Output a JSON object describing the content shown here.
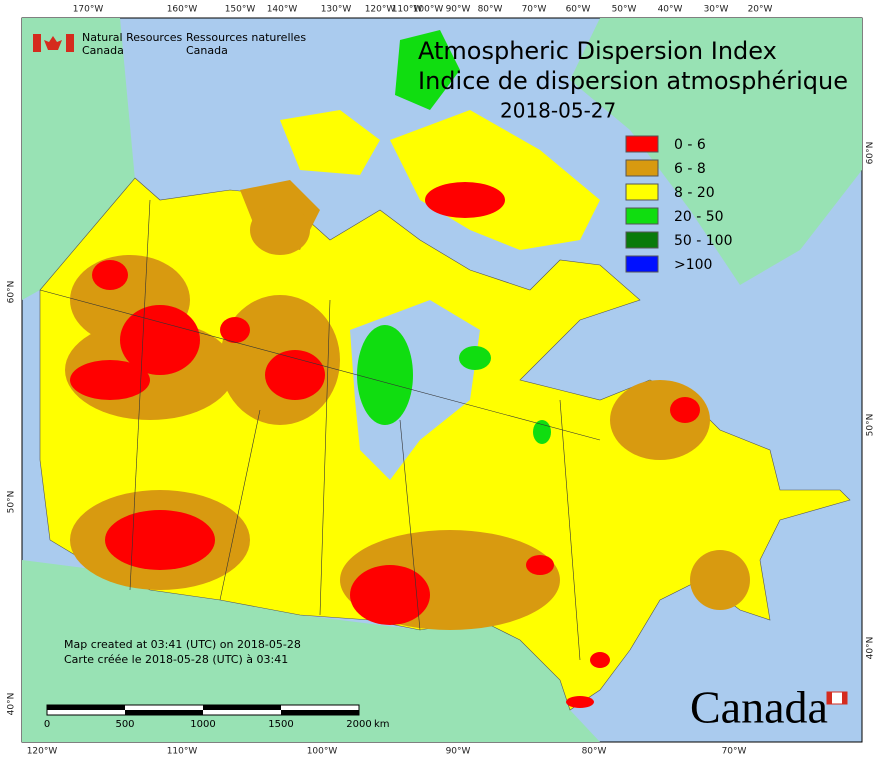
{
  "header": {
    "agency_en": [
      "Natural Resources",
      "Canada"
    ],
    "agency_fr": [
      "Ressources naturelles",
      "Canada"
    ]
  },
  "title": {
    "line1": "Atmospheric Dispersion Index",
    "line2": "Indice de dispersion atmosphérique",
    "date": "2018-05-27"
  },
  "legend": [
    {
      "label": "0 - 6",
      "color": "#ff0000"
    },
    {
      "label": "6 - 8",
      "color": "#d89a10"
    },
    {
      "label": "8 - 20",
      "color": "#ffff00"
    },
    {
      "label": "20 - 50",
      "color": "#10dd10"
    },
    {
      "label": "50 - 100",
      "color": "#0a7a0a"
    },
    {
      "label": ">100",
      "color": "#0010ff"
    }
  ],
  "graticule": {
    "top": [
      "170°W",
      "160°W",
      "150°W",
      "140°W",
      "130°W",
      "120°W",
      "110°W",
      "100°W",
      "90°W",
      "80°W",
      "70°W",
      "60°W",
      "50°W",
      "40°W",
      "30°W",
      "20°W"
    ],
    "bottom": [
      "120°W",
      "110°W",
      "100°W",
      "90°W",
      "80°W",
      "70°W"
    ],
    "left": [
      "60°N",
      "50°N",
      "40°N"
    ],
    "right": [
      "60°N",
      "50°N",
      "40°N"
    ]
  },
  "footer": {
    "created_en": "Map created at 03:41 (UTC) on 2018-05-28",
    "created_fr": "Carte créée le 2018-05-28 (UTC) à 03:41"
  },
  "scale_bar": {
    "ticks": [
      0,
      500,
      1000,
      1500,
      2000
    ],
    "unit": "km"
  },
  "wordmark": "Canada"
}
